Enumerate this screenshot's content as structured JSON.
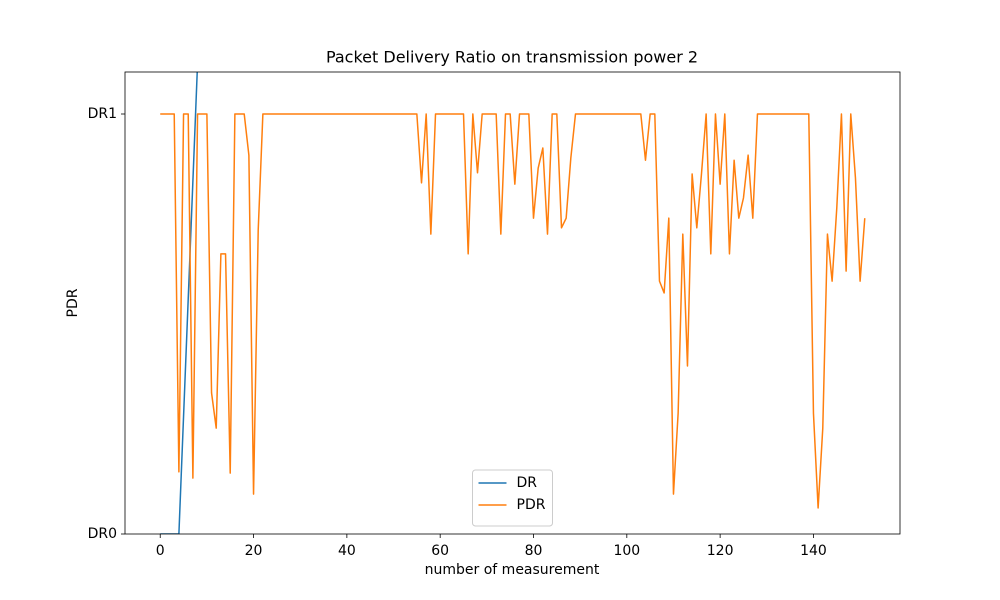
{
  "chart_data": {
    "type": "line",
    "title": "Packet Delivery Ratio on transmission power 2",
    "xlabel": "number of measurement",
    "ylabel": "PDR",
    "xlim": [
      -7.55,
      158.55
    ],
    "xticks": [
      0,
      20,
      40,
      60,
      80,
      100,
      120,
      140
    ],
    "ylim": [
      0,
      1.1
    ],
    "yticks": [
      {
        "value": 0,
        "label": "DR0"
      },
      {
        "value": 1,
        "label": "DR1"
      }
    ],
    "legend": "lower center",
    "series": [
      {
        "name": "DR",
        "color": "#1f77b4",
        "x": [
          0,
          1,
          2,
          3,
          4,
          5,
          6,
          7,
          8,
          9
        ],
        "values": [
          0,
          0,
          0,
          0,
          0,
          0.28,
          0.56,
          0.84,
          1.12,
          1.4
        ]
      },
      {
        "name": "PDR",
        "color": "#ff7f0e",
        "x": [
          0,
          1,
          2,
          3,
          4,
          5,
          6,
          7,
          8,
          9,
          10,
          11,
          12,
          13,
          14,
          15,
          16,
          17,
          18,
          19,
          20,
          21,
          22,
          23,
          24,
          25,
          26,
          27,
          28,
          29,
          30,
          31,
          32,
          33,
          34,
          35,
          36,
          37,
          38,
          39,
          40,
          41,
          42,
          43,
          44,
          45,
          46,
          47,
          48,
          49,
          50,
          51,
          52,
          53,
          54,
          55,
          56,
          57,
          58,
          59,
          60,
          61,
          62,
          63,
          64,
          65,
          66,
          67,
          68,
          69,
          70,
          71,
          72,
          73,
          74,
          75,
          76,
          77,
          78,
          79,
          80,
          81,
          82,
          83,
          84,
          85,
          86,
          87,
          88,
          89,
          90,
          91,
          92,
          93,
          94,
          95,
          96,
          97,
          98,
          99,
          100,
          101,
          102,
          103,
          104,
          105,
          106,
          107,
          108,
          109,
          110,
          111,
          112,
          113,
          114,
          115,
          116,
          117,
          118,
          119,
          120,
          121,
          122,
          123,
          124,
          125,
          126,
          127,
          128,
          129,
          130,
          131,
          132,
          133,
          134,
          135,
          136,
          137,
          138,
          139,
          140,
          141,
          142,
          143,
          144,
          145,
          146,
          147,
          148,
          149,
          150,
          151
        ],
        "values": [
          1,
          1,
          1,
          1,
          0.148,
          1,
          1,
          0.133,
          1,
          1,
          1,
          0.336,
          0.252,
          0.667,
          0.667,
          0.145,
          1,
          1,
          1,
          0.902,
          0.095,
          0.724,
          1,
          1,
          1,
          1,
          1,
          1,
          1,
          1,
          1,
          1,
          1,
          1,
          1,
          1,
          1,
          1,
          1,
          1,
          1,
          1,
          1,
          1,
          1,
          1,
          1,
          1,
          1,
          1,
          1,
          1,
          1,
          1,
          1,
          1,
          0.836,
          1,
          0.714,
          1,
          1,
          1,
          1,
          1,
          1,
          1,
          0.667,
          1,
          0.86,
          1,
          1,
          1,
          1,
          0.714,
          1,
          1,
          0.833,
          1,
          1,
          1,
          0.752,
          0.871,
          0.919,
          0.714,
          1,
          1,
          0.729,
          0.752,
          0.895,
          1,
          1,
          1,
          1,
          1,
          1,
          1,
          1,
          1,
          1,
          1,
          1,
          1,
          1,
          1,
          0.89,
          1,
          1,
          0.602,
          0.574,
          0.752,
          0.095,
          0.288,
          0.714,
          0.4,
          0.857,
          0.729,
          0.857,
          1,
          0.667,
          1,
          0.833,
          1,
          0.667,
          0.89,
          0.752,
          0.8,
          0.902,
          0.752,
          1,
          1,
          1,
          1,
          1,
          1,
          1,
          1,
          1,
          1,
          1,
          1,
          0.288,
          0.062,
          0.252,
          0.714,
          0.602,
          0.776,
          1,
          0.626,
          1,
          0.848,
          0.602,
          0.752
        ]
      }
    ]
  }
}
